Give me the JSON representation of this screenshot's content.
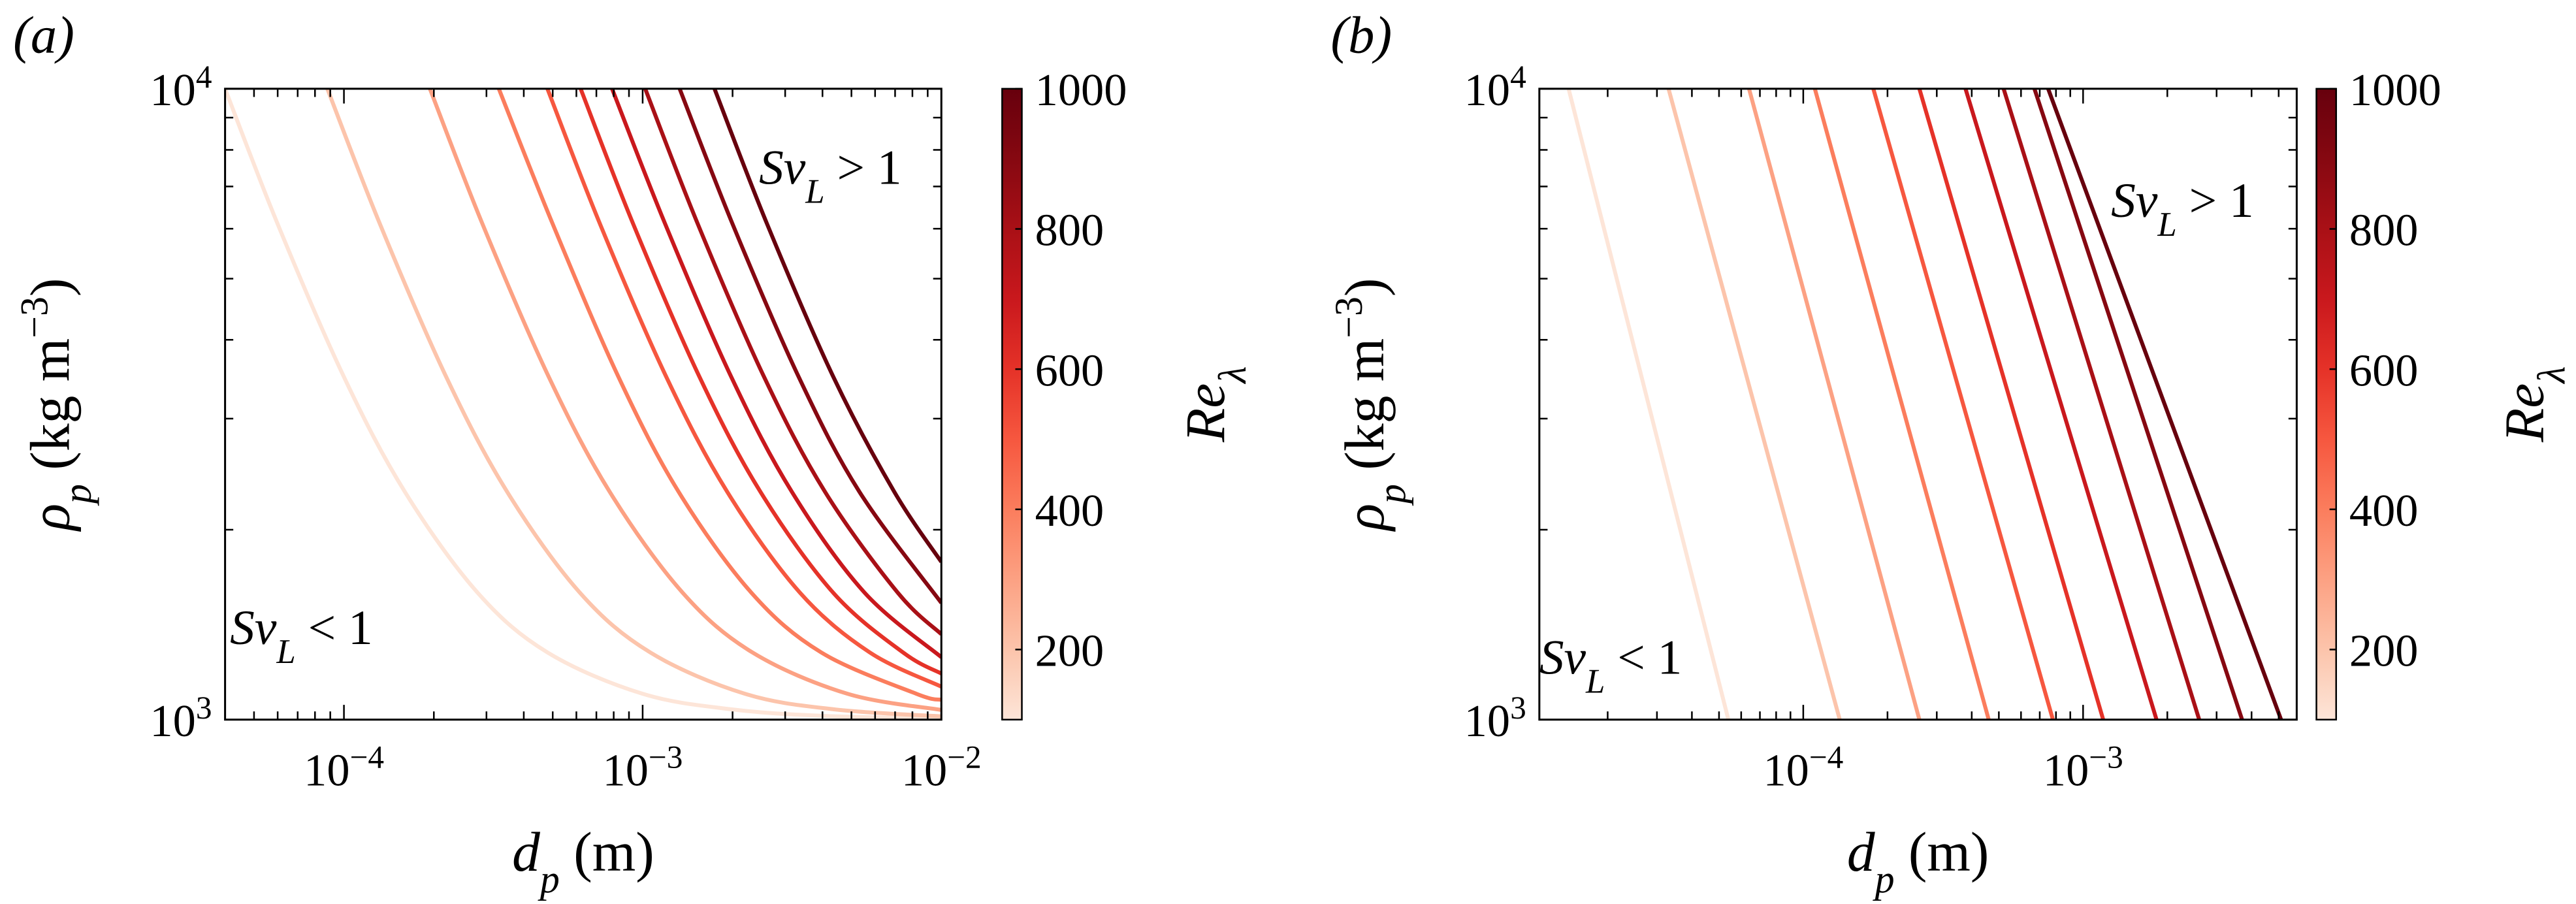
{
  "chart_data": [
    {
      "type": "line",
      "panel_label": "(a)",
      "xlabel": [
        "d",
        "p",
        " (m)"
      ],
      "ylabel": [
        "ρ",
        "p",
        " (kg m",
        "−3",
        ")"
      ],
      "log_x": true,
      "log_y": true,
      "xlim": [
        4e-05,
        0.01
      ],
      "ylim": [
        1000,
        10000
      ],
      "xticks": [
        {
          "value": 0.0001,
          "label": "10",
          "exp": "−4"
        },
        {
          "value": 0.001,
          "label": "10",
          "exp": "−3"
        },
        {
          "value": 0.01,
          "label": "10",
          "exp": "−2"
        }
      ],
      "yticks": [
        {
          "value": 1000,
          "label": "10",
          "exp": "3"
        },
        {
          "value": 10000,
          "label": "10",
          "exp": "4"
        }
      ],
      "minor_ticks": true,
      "annotations": [
        [
          "Sv",
          "L",
          " > 1"
        ],
        [
          "Sv",
          "L",
          " < 1"
        ]
      ],
      "colorbar": {
        "label": [
          "Re",
          "λ"
        ],
        "lim": [
          100,
          1000
        ],
        "ticks": [
          200,
          400,
          600,
          800,
          1000
        ]
      },
      "series": [
        {
          "re": 100,
          "color": "#fde5d8",
          "x": [
            4e-05,
            6e-05,
            0.0001,
            0.00016,
            0.00028,
            0.00048,
            0.001,
            0.002,
            0.004,
            0.01
          ],
          "values": [
            10000,
            6103,
            3493,
            2296,
            1590,
            1278,
            1099,
            1038,
            1014,
            1004
          ]
        },
        {
          "re": 200,
          "color": "#fcc4ab",
          "x": [
            8.8e-05,
            0.000132,
            0.00022,
            0.000352,
            0.000616,
            0.00106,
            0.0022,
            0.0044,
            0.01
          ],
          "values": [
            10000,
            6103,
            3493,
            2296,
            1590,
            1278,
            1099,
            1038,
            1012
          ]
        },
        {
          "re": 300,
          "color": "#fca183",
          "x": [
            0.000194,
            0.000291,
            0.000485,
            0.000776,
            0.00136,
            0.00233,
            0.00485,
            0.01
          ],
          "values": [
            10000,
            6103,
            3493,
            2296,
            1590,
            1278,
            1099,
            1036
          ]
        },
        {
          "re": 400,
          "color": "#fb7d5d",
          "x": [
            0.00033,
            0.0005,
            0.00083,
            0.00132,
            0.00231,
            0.00396,
            0.00825,
            0.01
          ],
          "values": [
            10000,
            6103,
            3493,
            2296,
            1590,
            1278,
            1099,
            1075
          ]
        },
        {
          "re": 500,
          "color": "#f6573f",
          "x": [
            0.00048,
            0.00072,
            0.0012,
            0.00192,
            0.00336,
            0.00576,
            0.01
          ],
          "values": [
            10000,
            6103,
            3493,
            2296,
            1590,
            1278,
            1128
          ]
        },
        {
          "re": 600,
          "color": "#e53228",
          "x": [
            0.00062,
            0.00093,
            0.00155,
            0.00248,
            0.00434,
            0.00744,
            0.01
          ],
          "values": [
            10000,
            6103,
            3493,
            2296,
            1590,
            1278,
            1183
          ]
        },
        {
          "re": 700,
          "color": "#c9181d",
          "x": [
            0.00079,
            0.00119,
            0.00198,
            0.00316,
            0.00553,
            0.01
          ],
          "values": [
            10000,
            6103,
            3493,
            2296,
            1590,
            1256
          ]
        },
        {
          "re": 800,
          "color": "#a91016",
          "x": [
            0.00102,
            0.00153,
            0.00255,
            0.00408,
            0.00714,
            0.01
          ],
          "values": [
            10000,
            6103,
            3493,
            2296,
            1590,
            1366
          ]
        },
        {
          "re": 900,
          "color": "#860811",
          "x": [
            0.00133,
            0.002,
            0.00333,
            0.00532,
            0.01
          ],
          "values": [
            10000,
            6103,
            3493,
            2296,
            1531
          ]
        },
        {
          "re": 1000,
          "color": "#67000d",
          "x": [
            0.00174,
            0.00261,
            0.00435,
            0.00696,
            0.01
          ],
          "values": [
            10000,
            6103,
            3493,
            2296,
            1778
          ]
        }
      ]
    },
    {
      "type": "line",
      "panel_label": "(b)",
      "xlabel": [
        "d",
        "p",
        " (m)"
      ],
      "ylabel": [
        "ρ",
        "p",
        " (kg m",
        "−3",
        ")"
      ],
      "log_x": true,
      "log_y": true,
      "xlim": [
        1.14e-05,
        0.0058
      ],
      "ylim": [
        1000,
        10000
      ],
      "xticks": [
        {
          "value": 0.0001,
          "label": "10",
          "exp": "−4"
        },
        {
          "value": 0.001,
          "label": "10",
          "exp": "−3"
        }
      ],
      "yticks": [
        {
          "value": 1000,
          "label": "10",
          "exp": "3"
        },
        {
          "value": 10000,
          "label": "10",
          "exp": "4"
        }
      ],
      "minor_ticks": true,
      "annotations": [
        [
          "Sv",
          "L",
          " > 1"
        ],
        [
          "Sv",
          "L",
          " < 1"
        ]
      ],
      "colorbar": {
        "label": [
          "Re",
          "λ"
        ],
        "lim": [
          100,
          1000
        ],
        "ticks": [
          200,
          400,
          600,
          800,
          1000
        ]
      },
      "series": [
        {
          "re": 100,
          "color": "#fde5d8",
          "x": [
            1.45e-05,
            5.4e-05
          ],
          "values": [
            10000,
            1000
          ]
        },
        {
          "re": 200,
          "color": "#fcc4ab",
          "x": [
            3.3e-05,
            0.000135
          ],
          "values": [
            10000,
            1000
          ]
        },
        {
          "re": 300,
          "color": "#fca183",
          "x": [
            6.4e-05,
            0.00026
          ],
          "values": [
            10000,
            1000
          ]
        },
        {
          "re": 400,
          "color": "#fb7d5d",
          "x": [
            0.00011,
            0.00046
          ],
          "values": [
            10000,
            1000
          ]
        },
        {
          "re": 500,
          "color": "#f6573f",
          "x": [
            0.000178,
            0.00078
          ],
          "values": [
            10000,
            1000
          ]
        },
        {
          "re": 600,
          "color": "#e53228",
          "x": [
            0.00026,
            0.00118
          ],
          "values": [
            10000,
            1000
          ]
        },
        {
          "re": 700,
          "color": "#c9181d",
          "x": [
            0.00038,
            0.00183
          ],
          "values": [
            10000,
            1000
          ]
        },
        {
          "re": 800,
          "color": "#a91016",
          "x": [
            0.00052,
            0.0026
          ],
          "values": [
            10000,
            1000
          ]
        },
        {
          "re": 900,
          "color": "#860811",
          "x": [
            0.00067,
            0.0037
          ],
          "values": [
            10000,
            1000
          ]
        },
        {
          "re": 1000,
          "color": "#67000d",
          "x": [
            0.00075,
            0.0051
          ],
          "values": [
            10000,
            1000
          ]
        }
      ]
    }
  ]
}
